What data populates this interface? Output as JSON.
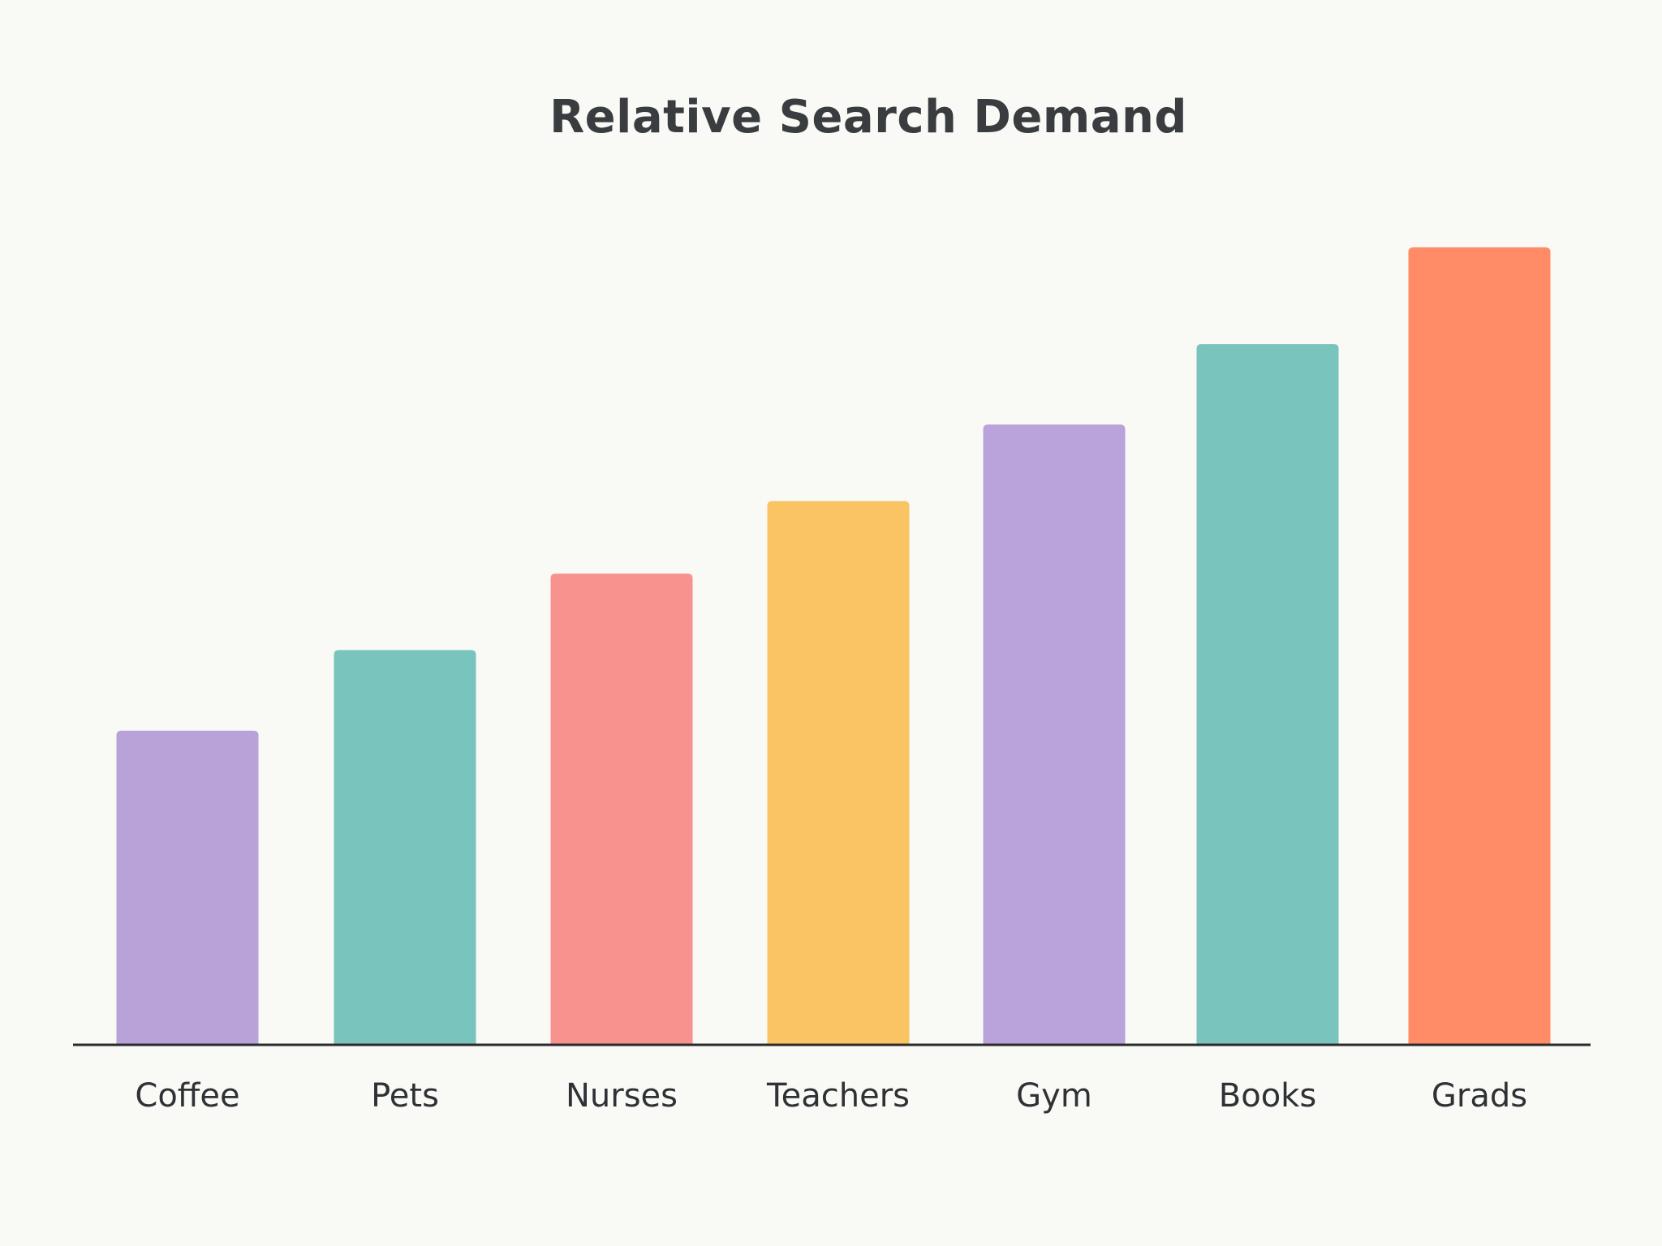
{
  "chart_data": {
    "type": "bar",
    "title": "Relative Search Demand",
    "xlabel": "",
    "ylabel": "",
    "categories": [
      "Coffee",
      "Pets",
      "Nurses",
      "Teachers",
      "Gym",
      "Books",
      "Grads"
    ],
    "values": [
      39,
      49,
      58.5,
      67.5,
      77,
      87,
      99
    ],
    "ylim": [
      0,
      100
    ],
    "grid": false,
    "colors": [
      "#b8a2d8",
      "#79c4bc",
      "#f8928e",
      "#fac464",
      "#baa2da",
      "#79c4bc",
      "#ff8c66"
    ],
    "axis_color": "#2b2b2b"
  }
}
